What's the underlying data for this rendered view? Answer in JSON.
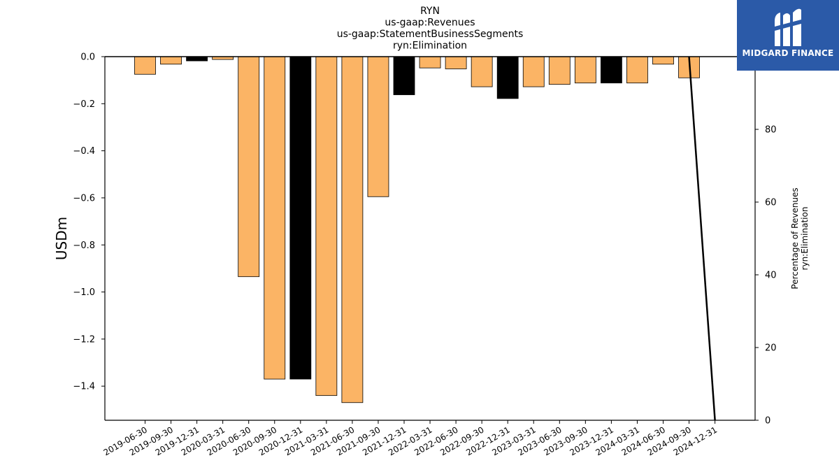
{
  "chart_data": {
    "type": "bar",
    "title_lines": [
      "RYN",
      "us-gaap:Revenues",
      "us-gaap:StatementBusinessSegments",
      "ryn:Elimination"
    ],
    "ylabel": "USDm",
    "ylabel_right": [
      "Percentage of Revenues",
      "ryn:Elimination"
    ],
    "categories": [
      "2019-06-30",
      "2019-09-30",
      "2019-12-31",
      "2020-03-31",
      "2020-06-30",
      "2020-09-30",
      "2020-12-31",
      "2021-03-31",
      "2021-06-30",
      "2021-09-30",
      "2021-12-31",
      "2022-03-31",
      "2022-06-30",
      "2022-09-30",
      "2022-12-31",
      "2023-03-31",
      "2023-06-30",
      "2023-09-30",
      "2023-12-31",
      "2024-03-31",
      "2024-06-30",
      "2024-09-30",
      "2024-12-31"
    ],
    "values": [
      -0.075,
      -0.032,
      -0.018,
      -0.012,
      -0.935,
      -1.37,
      -1.37,
      -1.44,
      -1.47,
      -0.595,
      -0.162,
      -0.048,
      -0.052,
      -0.128,
      -0.178,
      -0.128,
      -0.118,
      -0.112,
      -0.112,
      -0.112,
      -0.032,
      -0.09,
      null
    ],
    "bar_colors": [
      "#fbb465",
      "#fbb465",
      "#000000",
      "#fbb465",
      "#fbb465",
      "#fbb465",
      "#000000",
      "#fbb465",
      "#fbb465",
      "#fbb465",
      "#000000",
      "#fbb465",
      "#fbb465",
      "#fbb465",
      "#000000",
      "#fbb465",
      "#fbb465",
      "#fbb465",
      "#000000",
      "#fbb465",
      "#fbb465",
      "#fbb465",
      "#fbb465"
    ],
    "ylim": [
      -1.545,
      0.0
    ],
    "yticks": [
      0.0,
      -0.2,
      -0.4,
      -0.6,
      -0.8,
      -1.0,
      -1.2,
      -1.4
    ],
    "ytick_labels": [
      "0.0",
      "−0.2",
      "−0.4",
      "−0.6",
      "−0.8",
      "−1.0",
      "−1.2",
      "−1.4"
    ],
    "right_axis": {
      "ylim": [
        0,
        100
      ],
      "yticks": [
        0,
        20,
        40,
        60,
        80
      ],
      "ytick_labels": [
        "0",
        "20",
        "40",
        "60",
        "80"
      ],
      "line": {
        "x": [
          "2024-09-30",
          "2024-12-31"
        ],
        "y": [
          100,
          0
        ],
        "color": "#000000"
      }
    },
    "grid": false,
    "legend": "none"
  },
  "logo": {
    "text": "MIDGARD FINANCE",
    "bg_color": "#2b5aa8",
    "fg_color": "#ffffff"
  }
}
